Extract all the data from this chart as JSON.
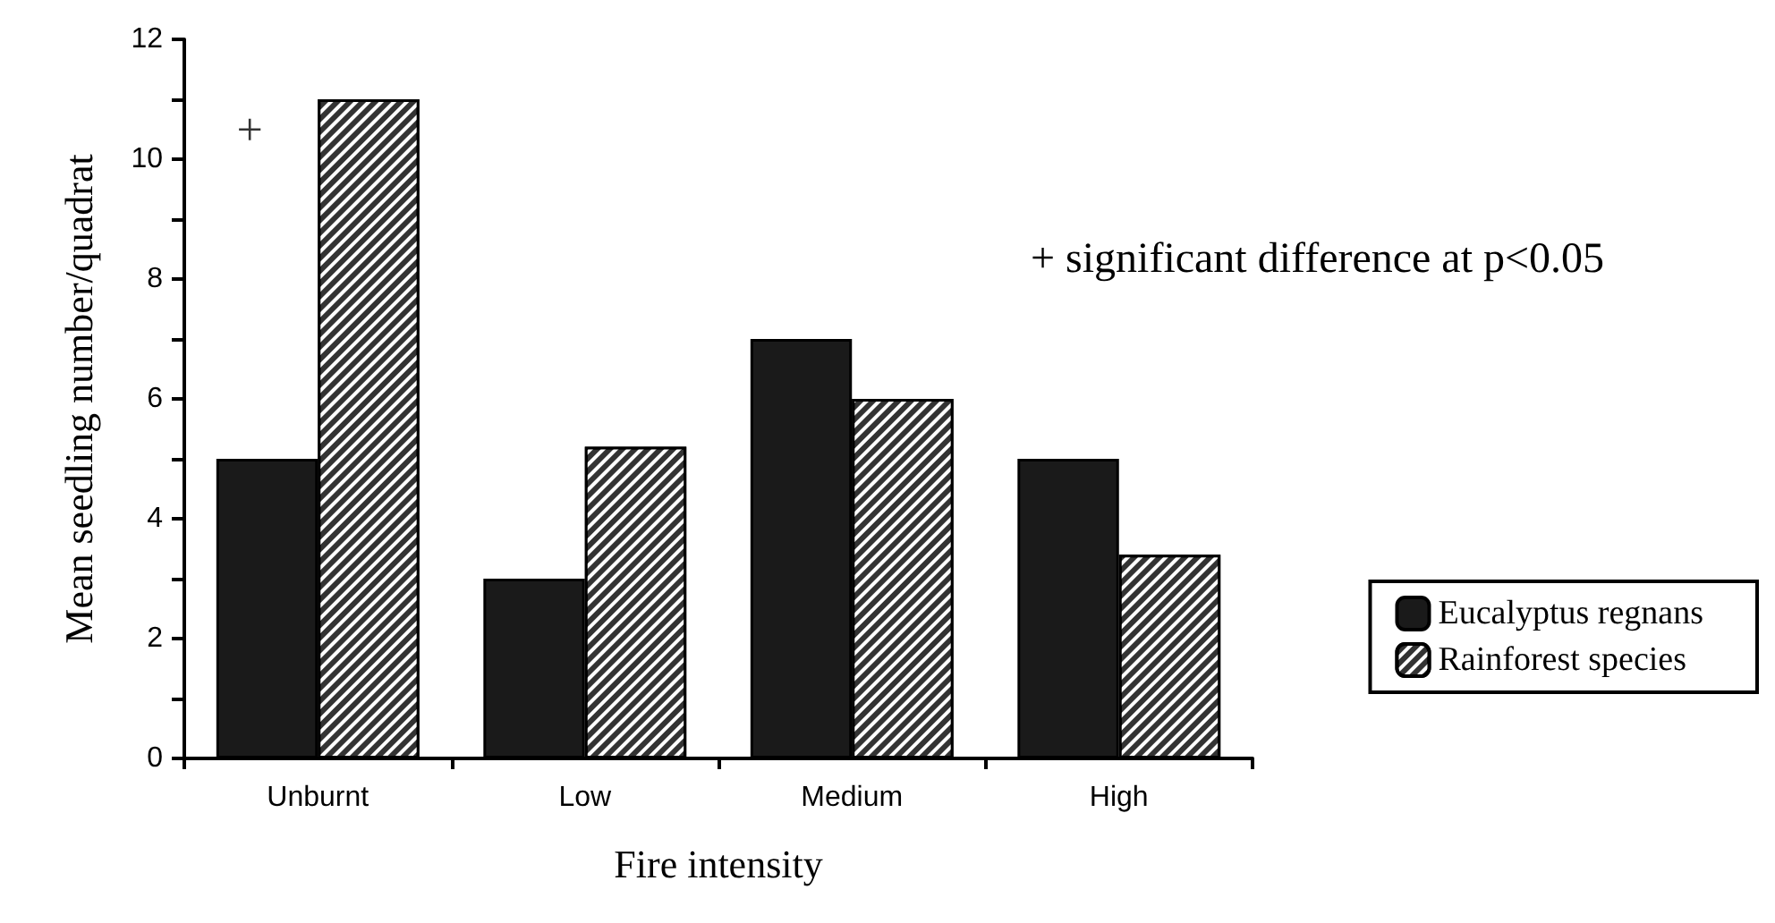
{
  "chart_data": {
    "type": "bar",
    "xlabel": "Fire intensity",
    "ylabel": "Mean seedling number/quadrat",
    "categories": [
      "Unburnt",
      "Low",
      "Medium",
      "High"
    ],
    "series": [
      {
        "name": "Eucalyptus regnans",
        "color": "#1a1a1a",
        "values": [
          5,
          3,
          7,
          5
        ]
      },
      {
        "name": "Rainforest species",
        "color": "#333333",
        "values": [
          11,
          5.2,
          6,
          3.4
        ]
      }
    ],
    "ylim": [
      0,
      12
    ],
    "yticks": [
      0,
      {
        "value": 1,
        "label": null
      },
      2,
      {
        "value": 3,
        "label": null
      },
      4,
      {
        "value": 5,
        "label": null
      },
      6,
      {
        "value": 7,
        "label": null
      },
      8,
      {
        "value": 9,
        "label": null
      },
      10,
      {
        "value": 11,
        "label": null
      },
      12
    ],
    "annotations": [
      {
        "text": "+",
        "x": "Unburnt",
        "y": 10.5
      },
      "+ significant difference at p<0.05"
    ],
    "legend": "right",
    "grid": false
  }
}
